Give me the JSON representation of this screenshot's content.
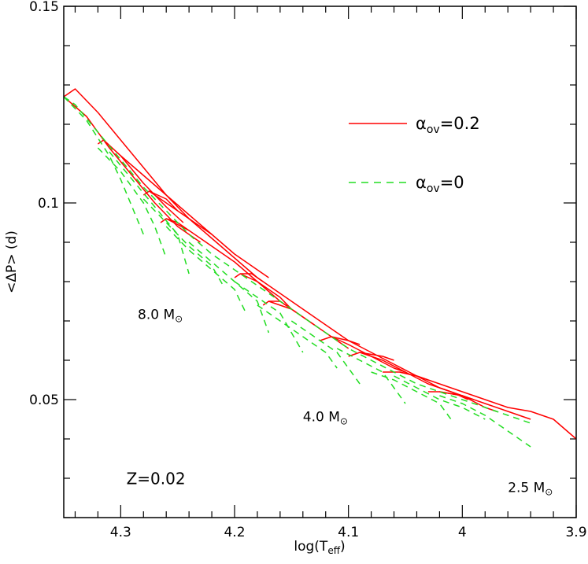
{
  "chart_data": {
    "type": "line",
    "xlabel": "log(T",
    "xlabel_sub": "eff",
    "xlabel_close": ")",
    "ylabel": "<ΔP> (d)",
    "xlim": [
      4.35,
      3.9
    ],
    "ylim": [
      0.02,
      0.15
    ],
    "x_ticks": [
      4.3,
      4.2,
      4.1,
      4.0,
      3.9
    ],
    "x_tick_labels": [
      "4.3",
      "4.2",
      "4.1",
      "4",
      "3.9"
    ],
    "y_ticks": [
      0.05,
      0.1,
      0.15
    ],
    "y_tick_labels": [
      "0.05",
      "0.1",
      "0.15"
    ],
    "x_minor_step": 0.02,
    "y_minor_step": 0.01,
    "grid": false,
    "legend_position": "top-right",
    "series": [
      {
        "name": "αov=0.2",
        "label_main": "α",
        "label_sub": "ov",
        "label_tail": "=0.2",
        "color": "#ff0000",
        "dash": "solid",
        "tracks": [
          [
            [
              4.35,
              0.127
            ],
            [
              4.34,
              0.129
            ],
            [
              4.32,
              0.123
            ],
            [
              4.3,
              0.116
            ],
            [
              4.28,
              0.109
            ],
            [
              4.26,
              0.102
            ],
            [
              4.24,
              0.096
            ],
            [
              4.22,
              0.091
            ],
            [
              4.2,
              0.086
            ],
            [
              4.18,
              0.081
            ],
            [
              4.16,
              0.077
            ],
            [
              4.14,
              0.073
            ],
            [
              4.12,
              0.069
            ],
            [
              4.1,
              0.065
            ],
            [
              4.08,
              0.062
            ],
            [
              4.06,
              0.059
            ],
            [
              4.04,
              0.056
            ],
            [
              4.02,
              0.054
            ],
            [
              4.0,
              0.052
            ],
            [
              3.98,
              0.05
            ],
            [
              3.96,
              0.048
            ],
            [
              3.94,
              0.047
            ],
            [
              3.92,
              0.045
            ],
            [
              3.9,
              0.04
            ]
          ],
          [
            [
              4.35,
              0.127
            ],
            [
              4.33,
              0.122
            ],
            [
              4.31,
              0.114
            ],
            [
              4.29,
              0.107
            ],
            [
              4.27,
              0.1
            ],
            [
              4.25,
              0.094
            ],
            [
              4.23,
              0.09
            ]
          ],
          [
            [
              4.32,
              0.115
            ],
            [
              4.315,
              0.116
            ],
            [
              4.3,
              0.112
            ],
            [
              4.28,
              0.105
            ],
            [
              4.26,
              0.099
            ],
            [
              4.245,
              0.095
            ]
          ],
          [
            [
              4.315,
              0.116
            ],
            [
              4.3,
              0.112
            ],
            [
              4.28,
              0.107
            ],
            [
              4.26,
              0.102
            ],
            [
              4.24,
              0.097
            ],
            [
              4.22,
              0.092
            ]
          ],
          [
            [
              4.28,
              0.102
            ],
            [
              4.275,
              0.103
            ],
            [
              4.26,
              0.101
            ],
            [
              4.25,
              0.098
            ]
          ],
          [
            [
              4.275,
              0.103
            ],
            [
              4.26,
              0.1
            ],
            [
              4.24,
              0.096
            ],
            [
              4.22,
              0.092
            ],
            [
              4.2,
              0.087
            ],
            [
              4.18,
              0.083
            ],
            [
              4.17,
              0.081
            ]
          ],
          [
            [
              4.265,
              0.095
            ],
            [
              4.26,
              0.096
            ],
            [
              4.25,
              0.095
            ],
            [
              4.24,
              0.093
            ]
          ],
          [
            [
              4.26,
              0.096
            ],
            [
              4.24,
              0.093
            ],
            [
              4.22,
              0.089
            ],
            [
              4.2,
              0.085
            ],
            [
              4.18,
              0.08
            ],
            [
              4.16,
              0.076
            ],
            [
              4.15,
              0.073
            ]
          ],
          [
            [
              4.2,
              0.081
            ],
            [
              4.195,
              0.082
            ],
            [
              4.185,
              0.082
            ],
            [
              4.175,
              0.08
            ]
          ],
          [
            [
              4.195,
              0.082
            ],
            [
              4.18,
              0.08
            ],
            [
              4.16,
              0.075
            ],
            [
              4.14,
              0.071
            ],
            [
              4.13,
              0.069
            ]
          ],
          [
            [
              4.175,
              0.074
            ],
            [
              4.17,
              0.075
            ],
            [
              4.16,
              0.075
            ],
            [
              4.15,
              0.073
            ]
          ],
          [
            [
              4.17,
              0.075
            ],
            [
              4.15,
              0.073
            ],
            [
              4.13,
              0.069
            ],
            [
              4.11,
              0.065
            ],
            [
              4.1,
              0.063
            ]
          ],
          [
            [
              4.125,
              0.065
            ],
            [
              4.115,
              0.066
            ],
            [
              4.1,
              0.065
            ],
            [
              4.09,
              0.064
            ]
          ],
          [
            [
              4.115,
              0.066
            ],
            [
              4.1,
              0.064
            ],
            [
              4.08,
              0.061
            ],
            [
              4.06,
              0.058
            ],
            [
              4.05,
              0.057
            ]
          ],
          [
            [
              4.1,
              0.061
            ],
            [
              4.09,
              0.062
            ],
            [
              4.07,
              0.061
            ],
            [
              4.06,
              0.06
            ]
          ],
          [
            [
              4.09,
              0.062
            ],
            [
              4.07,
              0.06
            ],
            [
              4.05,
              0.057
            ],
            [
              4.03,
              0.054
            ],
            [
              4.01,
              0.052
            ],
            [
              3.995,
              0.05
            ]
          ],
          [
            [
              4.07,
              0.057
            ],
            [
              4.055,
              0.057
            ],
            [
              4.04,
              0.056
            ],
            [
              4.03,
              0.055
            ]
          ],
          [
            [
              4.055,
              0.057
            ],
            [
              4.04,
              0.056
            ],
            [
              4.02,
              0.053
            ],
            [
              4.0,
              0.051
            ],
            [
              3.98,
              0.048
            ],
            [
              3.97,
              0.047
            ]
          ],
          [
            [
              4.03,
              0.052
            ],
            [
              4.02,
              0.052
            ],
            [
              4.0,
              0.051
            ],
            [
              3.99,
              0.05
            ]
          ],
          [
            [
              4.02,
              0.052
            ],
            [
              4.0,
              0.051
            ],
            [
              3.98,
              0.049
            ],
            [
              3.96,
              0.047
            ],
            [
              3.94,
              0.045
            ]
          ]
        ]
      },
      {
        "name": "αov=0",
        "label_main": "α",
        "label_sub": "ov",
        "label_tail": "=0",
        "color": "#22dd22",
        "dash": "dashed",
        "tracks": [
          [
            [
              4.35,
              0.127
            ],
            [
              4.34,
              0.125
            ],
            [
              4.32,
              0.118
            ],
            [
              4.3,
              0.111
            ],
            [
              4.28,
              0.104
            ],
            [
              4.26,
              0.098
            ],
            [
              4.24,
              0.092
            ],
            [
              4.22,
              0.087
            ],
            [
              4.2,
              0.083
            ],
            [
              4.18,
              0.079
            ],
            [
              4.16,
              0.075
            ],
            [
              4.14,
              0.071
            ],
            [
              4.12,
              0.067
            ],
            [
              4.1,
              0.063
            ],
            [
              4.08,
              0.06
            ],
            [
              4.06,
              0.057
            ],
            [
              4.04,
              0.054
            ],
            [
              4.02,
              0.052
            ],
            [
              4.0,
              0.05
            ],
            [
              3.98,
              0.048
            ],
            [
              3.96,
              0.046
            ],
            [
              3.94,
              0.044
            ]
          ],
          [
            [
              4.35,
              0.127
            ],
            [
              4.33,
              0.121
            ],
            [
              4.31,
              0.112
            ],
            [
              4.3,
              0.106
            ],
            [
              4.29,
              0.099
            ],
            [
              4.28,
              0.092
            ]
          ],
          [
            [
              4.32,
              0.114
            ],
            [
              4.3,
              0.108
            ],
            [
              4.28,
              0.1
            ],
            [
              4.27,
              0.094
            ],
            [
              4.26,
              0.086
            ]
          ],
          [
            [
              4.31,
              0.113
            ],
            [
              4.29,
              0.106
            ],
            [
              4.27,
              0.099
            ],
            [
              4.25,
              0.092
            ],
            [
              4.24,
              0.082
            ]
          ],
          [
            [
              4.28,
              0.101
            ],
            [
              4.26,
              0.095
            ],
            [
              4.24,
              0.089
            ],
            [
              4.22,
              0.084
            ],
            [
              4.21,
              0.079
            ]
          ],
          [
            [
              4.26,
              0.094
            ],
            [
              4.24,
              0.088
            ],
            [
              4.22,
              0.083
            ],
            [
              4.2,
              0.078
            ],
            [
              4.19,
              0.072
            ]
          ],
          [
            [
              4.24,
              0.09
            ],
            [
              4.22,
              0.085
            ],
            [
              4.2,
              0.08
            ],
            [
              4.18,
              0.075
            ],
            [
              4.17,
              0.067
            ]
          ],
          [
            [
              4.2,
              0.08
            ],
            [
              4.18,
              0.076
            ],
            [
              4.16,
              0.072
            ],
            [
              4.15,
              0.067
            ],
            [
              4.14,
              0.062
            ]
          ],
          [
            [
              4.18,
              0.074
            ],
            [
              4.16,
              0.07
            ],
            [
              4.14,
              0.066
            ],
            [
              4.12,
              0.062
            ],
            [
              4.11,
              0.058
            ]
          ],
          [
            [
              4.15,
              0.07
            ],
            [
              4.13,
              0.066
            ],
            [
              4.11,
              0.062
            ],
            [
              4.1,
              0.058
            ],
            [
              4.09,
              0.054
            ]
          ],
          [
            [
              4.11,
              0.063
            ],
            [
              4.09,
              0.06
            ],
            [
              4.07,
              0.057
            ],
            [
              4.06,
              0.053
            ],
            [
              4.05,
              0.049
            ]
          ],
          [
            [
              4.08,
              0.057
            ],
            [
              4.06,
              0.055
            ],
            [
              4.04,
              0.052
            ],
            [
              4.02,
              0.049
            ],
            [
              4.01,
              0.045
            ]
          ],
          [
            [
              4.06,
              0.056
            ],
            [
              4.04,
              0.053
            ],
            [
              4.02,
              0.05
            ],
            [
              4.0,
              0.048
            ],
            [
              3.98,
              0.045
            ]
          ],
          [
            [
              4.02,
              0.051
            ],
            [
              4.0,
              0.049
            ],
            [
              3.98,
              0.046
            ],
            [
              3.96,
              0.042
            ],
            [
              3.94,
              0.038
            ]
          ]
        ]
      }
    ],
    "annotations": [
      {
        "text": "8.0 M",
        "sub": "⊙",
        "x": 4.285,
        "y": 0.0705
      },
      {
        "text": "4.0 M",
        "sub": "⊙",
        "x": 4.14,
        "y": 0.0445
      },
      {
        "text": "2.5 M",
        "sub": "⊙",
        "x": 3.96,
        "y": 0.0265
      },
      {
        "text": "Z=0.02",
        "sub": "",
        "x": 4.295,
        "y": 0.0285
      }
    ]
  }
}
